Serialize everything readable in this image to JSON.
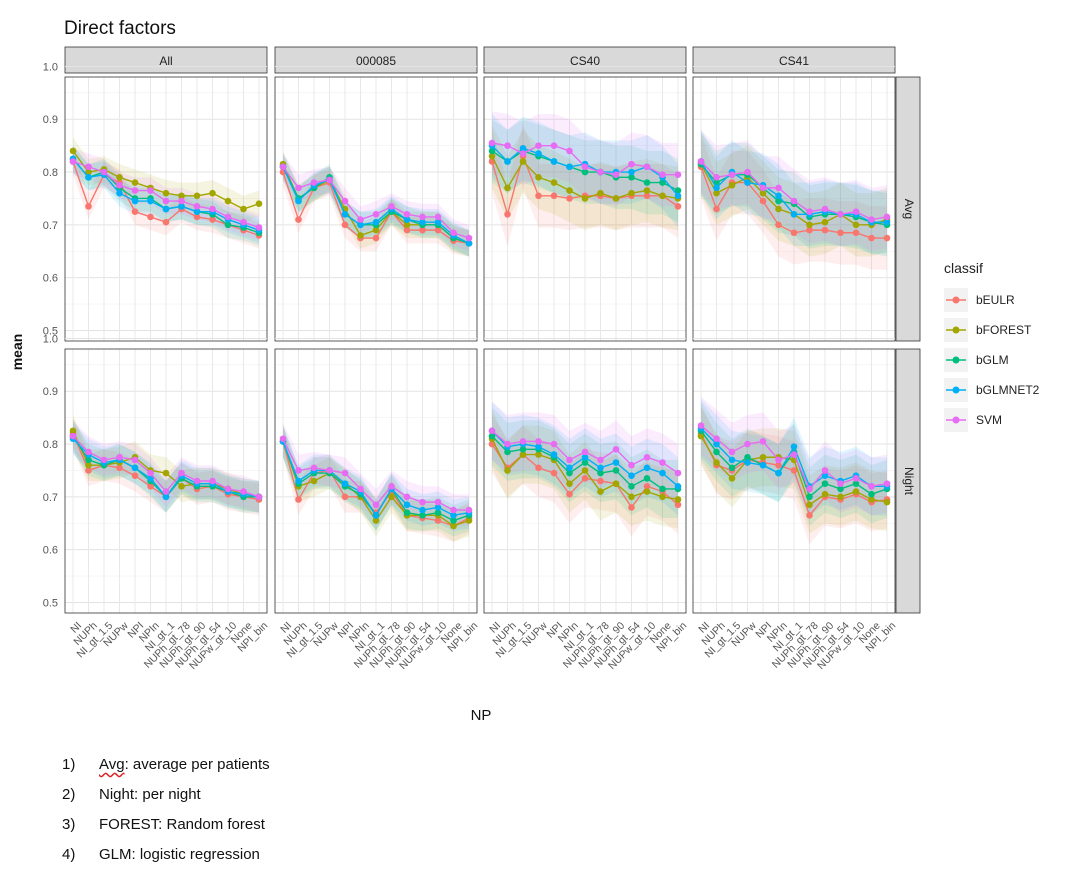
{
  "chart_data": {
    "type": "line",
    "title": "Direct factors",
    "xlabel": "NP",
    "ylabel": "mean",
    "ylim": [
      0.5,
      1.0
    ],
    "yticks": [
      "0.5",
      "0.6",
      "0.7",
      "0.8",
      "0.9",
      "1.0"
    ],
    "grid": true,
    "legend": {
      "title": "classif",
      "position": "right"
    },
    "columns": [
      "All",
      "000085",
      "CS40",
      "CS41"
    ],
    "rows": [
      "Avg",
      "Night"
    ],
    "categories": [
      "NI",
      "NUPh",
      "NI_gt_1.5",
      "NUPw",
      "NPI",
      "NPIn",
      "NI_gt_1",
      "NUPh_gt_78",
      "NUPh_gt_90",
      "NUPh_gt_54",
      "NUPw_gt_10",
      "None",
      "NPI_bin"
    ],
    "series_names": [
      "bEULR",
      "bFOREST",
      "bGLM",
      "bGLMNET2",
      "SVM"
    ],
    "colors": [
      "#f8766d",
      "#a3a500",
      "#00bf7d",
      "#00b0f6",
      "#e76bf3"
    ],
    "panels": [
      {
        "column": "All",
        "row": "Avg",
        "series": [
          {
            "name": "bEULR",
            "values": [
              0.82,
              0.735,
              0.795,
              0.78,
              0.725,
              0.715,
              0.705,
              0.73,
              0.715,
              0.71,
              0.7,
              0.69,
              0.68
            ]
          },
          {
            "name": "bFOREST",
            "values": [
              0.84,
              0.8,
              0.805,
              0.79,
              0.78,
              0.77,
              0.76,
              0.755,
              0.755,
              0.76,
              0.745,
              0.73,
              0.74
            ]
          },
          {
            "name": "bGLM",
            "values": [
              0.825,
              0.79,
              0.8,
              0.77,
              0.75,
              0.75,
              0.73,
              0.735,
              0.725,
              0.72,
              0.7,
              0.695,
              0.685
            ]
          },
          {
            "name": "bGLMNET2",
            "values": [
              0.825,
              0.79,
              0.795,
              0.76,
              0.745,
              0.745,
              0.73,
              0.735,
              0.725,
              0.725,
              0.71,
              0.7,
              0.69
            ]
          },
          {
            "name": "SVM",
            "values": [
              0.82,
              0.81,
              0.8,
              0.775,
              0.765,
              0.765,
              0.745,
              0.745,
              0.735,
              0.73,
              0.715,
              0.705,
              0.695
            ]
          }
        ]
      },
      {
        "column": "000085",
        "row": "Avg",
        "series": [
          {
            "name": "bEULR",
            "values": [
              0.8,
              0.71,
              0.77,
              0.78,
              0.7,
              0.675,
              0.675,
              0.725,
              0.69,
              0.69,
              0.69,
              0.67,
              0.665
            ]
          },
          {
            "name": "bFOREST",
            "values": [
              0.815,
              0.75,
              0.77,
              0.785,
              0.73,
              0.68,
              0.69,
              0.725,
              0.7,
              0.7,
              0.7,
              0.675,
              0.665
            ]
          },
          {
            "name": "bGLM",
            "values": [
              0.81,
              0.75,
              0.77,
              0.79,
              0.72,
              0.7,
              0.7,
              0.725,
              0.71,
              0.7,
              0.7,
              0.675,
              0.665
            ]
          },
          {
            "name": "bGLMNET2",
            "values": [
              0.81,
              0.745,
              0.775,
              0.785,
              0.72,
              0.7,
              0.705,
              0.73,
              0.71,
              0.705,
              0.705,
              0.68,
              0.665
            ]
          },
          {
            "name": "SVM",
            "values": [
              0.81,
              0.77,
              0.78,
              0.785,
              0.745,
              0.71,
              0.72,
              0.735,
              0.72,
              0.715,
              0.715,
              0.685,
              0.675
            ]
          }
        ]
      },
      {
        "column": "CS40",
        "row": "Avg",
        "series": [
          {
            "name": "bEULR",
            "values": [
              0.82,
              0.72,
              0.83,
              0.755,
              0.755,
              0.75,
              0.755,
              0.755,
              0.75,
              0.755,
              0.755,
              0.755,
              0.735
            ]
          },
          {
            "name": "bFOREST",
            "values": [
              0.83,
              0.77,
              0.82,
              0.79,
              0.78,
              0.765,
              0.75,
              0.76,
              0.75,
              0.76,
              0.765,
              0.755,
              0.75
            ]
          },
          {
            "name": "bGLM",
            "values": [
              0.84,
              0.82,
              0.84,
              0.83,
              0.82,
              0.81,
              0.8,
              0.8,
              0.79,
              0.79,
              0.78,
              0.78,
              0.765
            ]
          },
          {
            "name": "bGLMNET2",
            "values": [
              0.85,
              0.82,
              0.845,
              0.835,
              0.82,
              0.81,
              0.815,
              0.8,
              0.8,
              0.8,
              0.81,
              0.79,
              0.755
            ]
          },
          {
            "name": "SVM",
            "values": [
              0.855,
              0.85,
              0.835,
              0.85,
              0.85,
              0.84,
              0.81,
              0.8,
              0.795,
              0.815,
              0.81,
              0.795,
              0.795
            ]
          }
        ]
      },
      {
        "column": "CS41",
        "row": "Avg",
        "series": [
          {
            "name": "bEULR",
            "values": [
              0.81,
              0.73,
              0.78,
              0.78,
              0.745,
              0.7,
              0.685,
              0.69,
              0.69,
              0.685,
              0.685,
              0.675,
              0.675
            ]
          },
          {
            "name": "bFOREST",
            "values": [
              0.815,
              0.76,
              0.775,
              0.79,
              0.76,
              0.73,
              0.72,
              0.7,
              0.705,
              0.72,
              0.7,
              0.7,
              0.71
            ]
          },
          {
            "name": "bGLM",
            "values": [
              0.815,
              0.78,
              0.795,
              0.795,
              0.77,
              0.745,
              0.74,
              0.715,
              0.72,
              0.72,
              0.715,
              0.705,
              0.7
            ]
          },
          {
            "name": "bGLMNET2",
            "values": [
              0.82,
              0.77,
              0.8,
              0.78,
              0.775,
              0.755,
              0.72,
              0.72,
              0.725,
              0.72,
              0.72,
              0.705,
              0.705
            ]
          },
          {
            "name": "SVM",
            "values": [
              0.82,
              0.79,
              0.795,
              0.8,
              0.77,
              0.77,
              0.745,
              0.725,
              0.73,
              0.72,
              0.725,
              0.71,
              0.715
            ]
          }
        ]
      },
      {
        "column": "All",
        "row": "Night",
        "series": [
          {
            "name": "bEULR",
            "values": [
              0.82,
              0.75,
              0.76,
              0.755,
              0.74,
              0.72,
              0.7,
              0.735,
              0.715,
              0.72,
              0.705,
              0.7,
              0.695
            ]
          },
          {
            "name": "bFOREST",
            "values": [
              0.825,
              0.76,
              0.76,
              0.765,
              0.775,
              0.75,
              0.745,
              0.72,
              0.725,
              0.725,
              0.715,
              0.705,
              0.7
            ]
          },
          {
            "name": "bGLM",
            "values": [
              0.815,
              0.77,
              0.76,
              0.77,
              0.755,
              0.73,
              0.7,
              0.735,
              0.72,
              0.72,
              0.71,
              0.7,
              0.7
            ]
          },
          {
            "name": "bGLMNET2",
            "values": [
              0.81,
              0.78,
              0.765,
              0.77,
              0.755,
              0.735,
              0.7,
              0.74,
              0.725,
              0.725,
              0.71,
              0.705,
              0.7
            ]
          },
          {
            "name": "SVM",
            "values": [
              0.815,
              0.785,
              0.77,
              0.775,
              0.77,
              0.745,
              0.71,
              0.745,
              0.73,
              0.73,
              0.715,
              0.71,
              0.7
            ]
          }
        ]
      },
      {
        "column": "000085",
        "row": "Night",
        "series": [
          {
            "name": "bEULR",
            "values": [
              0.805,
              0.695,
              0.745,
              0.75,
              0.7,
              0.7,
              0.67,
              0.71,
              0.665,
              0.66,
              0.655,
              0.645,
              0.66
            ]
          },
          {
            "name": "bFOREST",
            "values": [
              0.805,
              0.72,
              0.73,
              0.745,
              0.725,
              0.7,
              0.655,
              0.7,
              0.665,
              0.665,
              0.665,
              0.645,
              0.655
            ]
          },
          {
            "name": "bGLM",
            "values": [
              0.805,
              0.725,
              0.745,
              0.745,
              0.72,
              0.705,
              0.665,
              0.715,
              0.67,
              0.665,
              0.67,
              0.655,
              0.665
            ]
          },
          {
            "name": "bGLMNET2",
            "values": [
              0.805,
              0.73,
              0.75,
              0.75,
              0.725,
              0.71,
              0.665,
              0.715,
              0.685,
              0.675,
              0.68,
              0.665,
              0.67
            ]
          },
          {
            "name": "SVM",
            "values": [
              0.81,
              0.75,
              0.755,
              0.75,
              0.745,
              0.715,
              0.685,
              0.72,
              0.7,
              0.69,
              0.69,
              0.675,
              0.675
            ]
          }
        ]
      },
      {
        "column": "CS40",
        "row": "Night",
        "series": [
          {
            "name": "bEULR",
            "values": [
              0.8,
              0.755,
              0.78,
              0.755,
              0.745,
              0.705,
              0.735,
              0.73,
              0.725,
              0.68,
              0.72,
              0.71,
              0.685
            ]
          },
          {
            "name": "bFOREST",
            "values": [
              0.81,
              0.75,
              0.78,
              0.78,
              0.77,
              0.725,
              0.75,
              0.71,
              0.725,
              0.7,
              0.71,
              0.7,
              0.695
            ]
          },
          {
            "name": "bGLM",
            "values": [
              0.815,
              0.785,
              0.79,
              0.79,
              0.775,
              0.745,
              0.765,
              0.745,
              0.75,
              0.72,
              0.735,
              0.715,
              0.715
            ]
          },
          {
            "name": "bGLMNET2",
            "values": [
              0.825,
              0.795,
              0.8,
              0.795,
              0.78,
              0.755,
              0.775,
              0.755,
              0.765,
              0.74,
              0.755,
              0.745,
              0.72
            ]
          },
          {
            "name": "SVM",
            "values": [
              0.825,
              0.8,
              0.805,
              0.805,
              0.8,
              0.77,
              0.785,
              0.77,
              0.79,
              0.76,
              0.775,
              0.765,
              0.745
            ]
          }
        ]
      },
      {
        "column": "CS41",
        "row": "Night",
        "series": [
          {
            "name": "bEULR",
            "values": [
              0.82,
              0.76,
              0.75,
              0.77,
              0.765,
              0.76,
              0.75,
              0.665,
              0.7,
              0.695,
              0.705,
              0.69,
              0.695
            ]
          },
          {
            "name": "bFOREST",
            "values": [
              0.815,
              0.765,
              0.735,
              0.77,
              0.775,
              0.775,
              0.77,
              0.685,
              0.705,
              0.7,
              0.71,
              0.695,
              0.69
            ]
          },
          {
            "name": "bGLM",
            "values": [
              0.825,
              0.785,
              0.755,
              0.775,
              0.76,
              0.745,
              0.785,
              0.7,
              0.725,
              0.715,
              0.725,
              0.705,
              0.715
            ]
          },
          {
            "name": "bGLMNET2",
            "values": [
              0.83,
              0.8,
              0.77,
              0.765,
              0.76,
              0.745,
              0.795,
              0.72,
              0.74,
              0.73,
              0.74,
              0.72,
              0.72
            ]
          },
          {
            "name": "SVM",
            "values": [
              0.835,
              0.81,
              0.785,
              0.8,
              0.805,
              0.77,
              0.78,
              0.715,
              0.75,
              0.725,
              0.735,
              0.72,
              0.725
            ]
          }
        ]
      }
    ]
  },
  "notes": [
    {
      "num": "1)",
      "term": "Avg",
      "text": ": average per patients"
    },
    {
      "num": "2)",
      "term": "",
      "text": "Night: per night"
    },
    {
      "num": "3)",
      "term": "",
      "text": "FOREST: Random forest"
    },
    {
      "num": "4)",
      "term": "",
      "text": "GLM: logistic regression"
    }
  ]
}
